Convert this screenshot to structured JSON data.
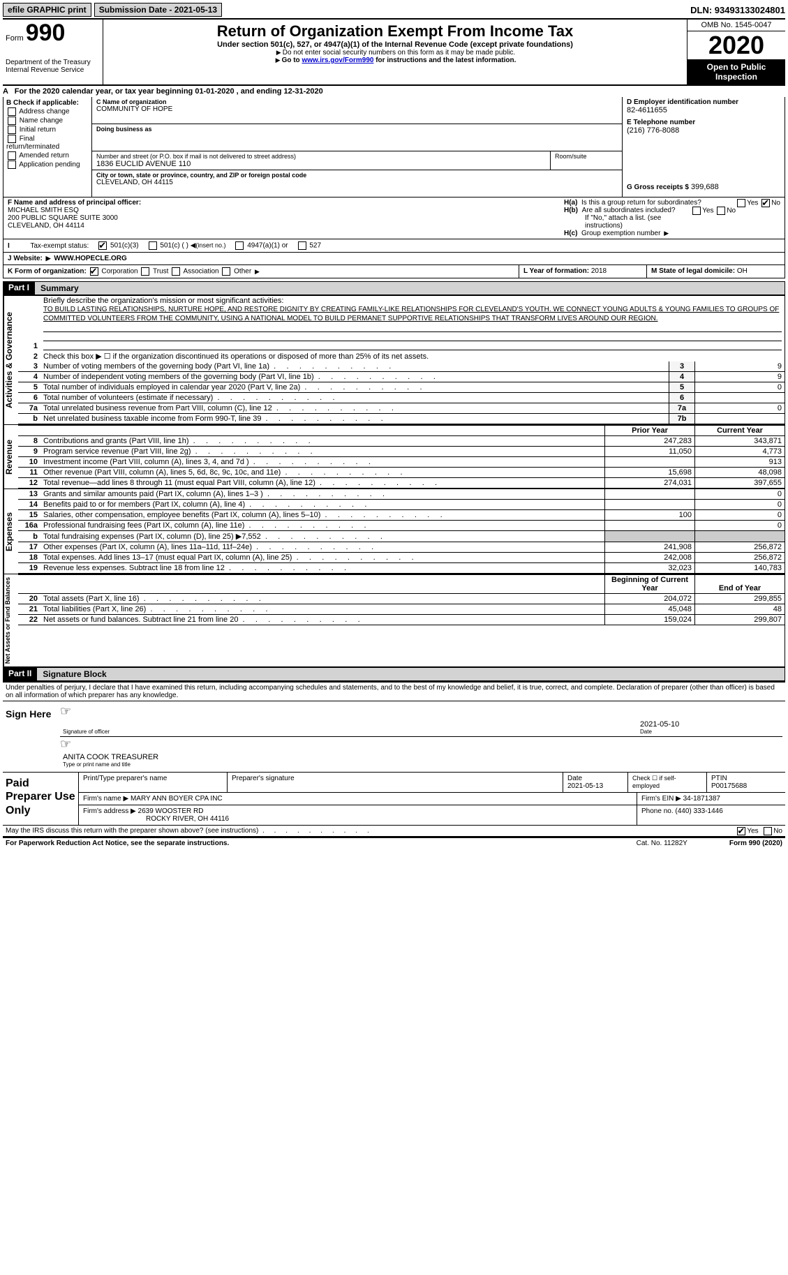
{
  "topbar": {
    "efile": "efile GRAPHIC print",
    "submission": "Submission Date - 2021-05-13",
    "dln": "DLN: 93493133024801"
  },
  "header": {
    "form_label": "Form",
    "form_number": "990",
    "dept1": "Department of the Treasury",
    "dept2": "Internal Revenue Service",
    "title": "Return of Organization Exempt From Income Tax",
    "subtitle": "Under section 501(c), 527, or 4947(a)(1) of the Internal Revenue Code (except private foundations)",
    "warn1": "Do not enter social security numbers on this form as it may be made public.",
    "warn2_pre": "Go to ",
    "warn2_link": "www.irs.gov/Form990",
    "warn2_post": " for instructions and the latest information.",
    "omb": "OMB No. 1545-0047",
    "year": "2020",
    "open": "Open to Public Inspection"
  },
  "period": "For the 2020 calendar year, or tax year beginning 01-01-2020   , and ending 12-31-2020",
  "box_b": {
    "title": "B Check if applicable:",
    "items": [
      "Address change",
      "Name change",
      "Initial return",
      "Final return/terminated",
      "Amended return",
      "Application pending"
    ]
  },
  "box_c": {
    "lbl": "C Name of organization",
    "name": "COMMUNITY OF HOPE",
    "dba_lbl": "Doing business as",
    "addr_lbl": "Number and street (or P.O. box if mail is not delivered to street address)",
    "addr": "1836 EUCLID AVENUE 110",
    "room_lbl": "Room/suite",
    "city_lbl": "City or town, state or province, country, and ZIP or foreign postal code",
    "city": "CLEVELAND, OH  44115"
  },
  "box_d": {
    "ein_lbl": "D Employer identification number",
    "ein": "82-4611655",
    "tel_lbl": "E Telephone number",
    "tel": "(216) 776-8088",
    "gross_lbl": "G Gross receipts $",
    "gross": "399,688"
  },
  "box_f": {
    "lbl": "F Name and address of principal officer:",
    "l1": "MICHAEL SMITH ESQ",
    "l2": "200 PUBLIC SQUARE SUITE 3000",
    "l3": "CLEVELAND, OH  44114"
  },
  "box_h": {
    "ha": "Is this a group return for subordinates?",
    "hb": "Are all subordinates included?",
    "hb_note": "If \"No,\" attach a list. (see instructions)",
    "hc": "Group exemption number"
  },
  "status": {
    "lbl": "Tax-exempt status:",
    "o1": "501(c)(3)",
    "o2": "501(c) (  )",
    "o2n": "(insert no.)",
    "o3": "4947(a)(1) or",
    "o4": "527"
  },
  "website": {
    "lbl": "J    Website:",
    "val": "WWW.HOPECLE.ORG"
  },
  "korg": {
    "lbl": "K Form of organization:",
    "o1": "Corporation",
    "o2": "Trust",
    "o3": "Association",
    "o4": "Other",
    "l_lbl": "L Year of formation:",
    "l_val": "2018",
    "m_lbl": "M State of legal domicile:",
    "m_val": "OH"
  },
  "part1": {
    "title": "Part I",
    "summary": "Summary",
    "q1_lbl": "Briefly describe the organization's mission or most significant activities:",
    "q1_val": "TO BUILD LASTING RELATIONSHIPS, NURTURE HOPE, AND RESTORE DIGNITY BY CREATING FAMILY-LIKE RELATIONSHIPS FOR CLEVELAND'S YOUTH. WE CONNECT YOUNG ADULTS & YOUNG FAMILIES TO GROUPS OF COMMITTED VOLUNTEERS FROM THE COMMUNITY, USING A NATIONAL MODEL TO BUILD PERMANET SUPPORTIVE RELATIONSHIPS THAT TRANSFORM LIVES AROUND OUR REGION.",
    "q2": "Check this box ▶ ☐  if the organization discontinued its operations or disposed of more than 25% of its net assets.",
    "gov_lines": [
      {
        "n": "3",
        "t": "Number of voting members of the governing body (Part VI, line 1a)",
        "k": "3",
        "v": "9"
      },
      {
        "n": "4",
        "t": "Number of independent voting members of the governing body (Part VI, line 1b)",
        "k": "4",
        "v": "9"
      },
      {
        "n": "5",
        "t": "Total number of individuals employed in calendar year 2020 (Part V, line 2a)",
        "k": "5",
        "v": "0"
      },
      {
        "n": "6",
        "t": "Total number of volunteers (estimate if necessary)",
        "k": "6",
        "v": ""
      },
      {
        "n": "7a",
        "t": "Total unrelated business revenue from Part VIII, column (C), line 12",
        "k": "7a",
        "v": "0"
      },
      {
        "n": "b",
        "t": "Net unrelated business taxable income from Form 990-T, line 39",
        "k": "7b",
        "v": ""
      }
    ],
    "col_prior": "Prior Year",
    "col_curr": "Current Year",
    "rev_lines": [
      {
        "n": "8",
        "t": "Contributions and grants (Part VIII, line 1h)",
        "p": "247,283",
        "c": "343,871"
      },
      {
        "n": "9",
        "t": "Program service revenue (Part VIII, line 2g)",
        "p": "11,050",
        "c": "4,773"
      },
      {
        "n": "10",
        "t": "Investment income (Part VIII, column (A), lines 3, 4, and 7d )",
        "p": "",
        "c": "913"
      },
      {
        "n": "11",
        "t": "Other revenue (Part VIII, column (A), lines 5, 6d, 8c, 9c, 10c, and 11e)",
        "p": "15,698",
        "c": "48,098"
      },
      {
        "n": "12",
        "t": "Total revenue—add lines 8 through 11 (must equal Part VIII, column (A), line 12)",
        "p": "274,031",
        "c": "397,655"
      }
    ],
    "exp_lines": [
      {
        "n": "13",
        "t": "Grants and similar amounts paid (Part IX, column (A), lines 1–3 )",
        "p": "",
        "c": "0"
      },
      {
        "n": "14",
        "t": "Benefits paid to or for members (Part IX, column (A), line 4)",
        "p": "",
        "c": "0"
      },
      {
        "n": "15",
        "t": "Salaries, other compensation, employee benefits (Part IX, column (A), lines 5–10)",
        "p": "100",
        "c": "0"
      },
      {
        "n": "16a",
        "t": "Professional fundraising fees (Part IX, column (A), line 11e)",
        "p": "",
        "c": "0"
      },
      {
        "n": "b",
        "t": "Total fundraising expenses (Part IX, column (D), line 25) ▶7,552",
        "p": "_shade_",
        "c": "_shade_"
      },
      {
        "n": "17",
        "t": "Other expenses (Part IX, column (A), lines 11a–11d, 11f–24e)",
        "p": "241,908",
        "c": "256,872"
      },
      {
        "n": "18",
        "t": "Total expenses. Add lines 13–17 (must equal Part IX, column (A), line 25)",
        "p": "242,008",
        "c": "256,872"
      },
      {
        "n": "19",
        "t": "Revenue less expenses. Subtract line 18 from line 12",
        "p": "32,023",
        "c": "140,783"
      }
    ],
    "col_begin": "Beginning of Current Year",
    "col_end": "End of Year",
    "na_lines": [
      {
        "n": "20",
        "t": "Total assets (Part X, line 16)",
        "p": "204,072",
        "c": "299,855"
      },
      {
        "n": "21",
        "t": "Total liabilities (Part X, line 26)",
        "p": "45,048",
        "c": "48"
      },
      {
        "n": "22",
        "t": "Net assets or fund balances. Subtract line 21 from line 20",
        "p": "159,024",
        "c": "299,807"
      }
    ]
  },
  "side_labels": {
    "gov": "Activities & Governance",
    "rev": "Revenue",
    "exp": "Expenses",
    "na": "Net Assets or Fund Balances"
  },
  "part2": {
    "title": "Part II",
    "sig": "Signature Block",
    "decl": "Under penalties of perjury, I declare that I have examined this return, including accompanying schedules and statements, and to the best of my knowledge and belief, it is true, correct, and complete. Declaration of preparer (other than officer) is based on all information of which preparer has any knowledge.",
    "sign_here": "Sign Here",
    "sig_officer": "Signature of officer",
    "sig_date": "2021-05-10",
    "date_lbl": "Date",
    "officer_name": "ANITA COOK TREASURER",
    "name_lbl": "Type or print name and title",
    "paid": "Paid Preparer Use Only",
    "prep_name_lbl": "Print/Type preparer's name",
    "prep_sig_lbl": "Preparer's signature",
    "prep_date_lbl": "Date",
    "prep_date": "2021-05-13",
    "check_lbl": "Check ☐ if self-employed",
    "ptin_lbl": "PTIN",
    "ptin": "P00175688",
    "firm_name_lbl": "Firm's name    ▶",
    "firm_name": "MARY ANN BOYER CPA INC",
    "firm_ein_lbl": "Firm's EIN ▶",
    "firm_ein": "34-1871387",
    "firm_addr_lbl": "Firm's address ▶",
    "firm_addr1": "2639 WOOSTER RD",
    "firm_addr2": "ROCKY RIVER, OH  44116",
    "phone_lbl": "Phone no.",
    "phone": "(440) 333-1446",
    "discuss": "May the IRS discuss this return with the preparer shown above? (see instructions)"
  },
  "footer": {
    "l": "For Paperwork Reduction Act Notice, see the separate instructions.",
    "m": "Cat. No. 11282Y",
    "r": "Form 990 (2020)"
  }
}
